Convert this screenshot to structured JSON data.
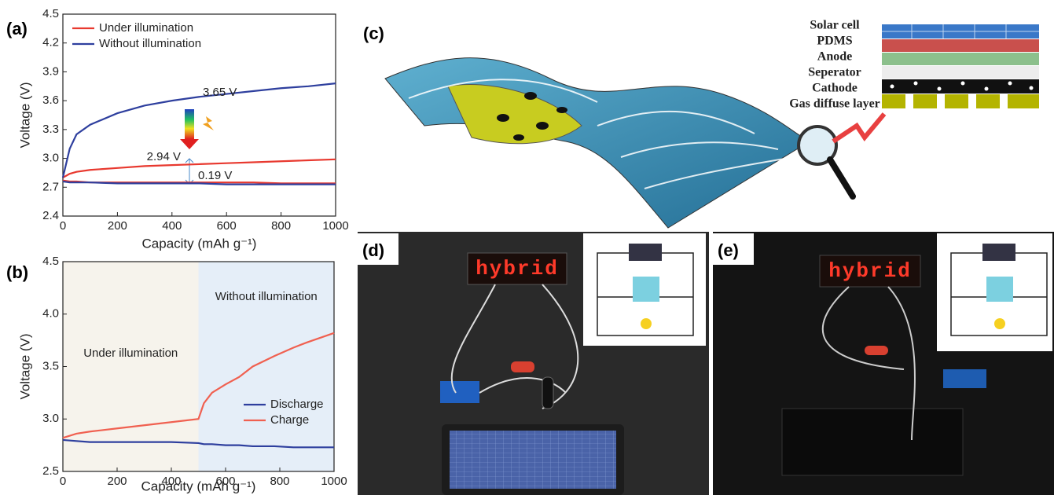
{
  "chart_data": [
    {
      "type": "line",
      "label": "(a)",
      "xlabel": "Capacity (mAh g⁻¹)",
      "ylabel": "Voltage (V)",
      "x": [
        0,
        25,
        50,
        100,
        200,
        300,
        400,
        500,
        600,
        700,
        800,
        900,
        1000
      ],
      "series": [
        {
          "name": "Under illumination",
          "color": "#e8392f",
          "values": [
            2.8,
            2.84,
            2.86,
            2.88,
            2.9,
            2.92,
            2.93,
            2.94,
            2.95,
            2.96,
            2.97,
            2.98,
            2.99
          ],
          "discharge_values": [
            2.77,
            2.76,
            2.76,
            2.75,
            2.75,
            2.75,
            2.75,
            2.75,
            2.75,
            2.75,
            2.74,
            2.74,
            2.74
          ]
        },
        {
          "name": "Without illumination",
          "color": "#2e3f9e",
          "values": [
            2.8,
            3.1,
            3.25,
            3.35,
            3.47,
            3.55,
            3.6,
            3.64,
            3.67,
            3.7,
            3.73,
            3.75,
            3.78
          ],
          "discharge_values": [
            2.76,
            2.75,
            2.75,
            2.75,
            2.74,
            2.74,
            2.74,
            2.74,
            2.73,
            2.73,
            2.73,
            2.73,
            2.73
          ]
        }
      ],
      "annotations": [
        "3.65 V",
        "2.94 V",
        "0.19 V"
      ],
      "xlim": [
        0,
        1000
      ],
      "xticks": [
        0,
        200,
        400,
        600,
        800,
        1000
      ],
      "ylim": [
        2.4,
        4.5
      ],
      "yticks": [
        2.4,
        2.7,
        {
          "value": 3,
          "label": "3.0"
        },
        3.3,
        3.6,
        3.9,
        4.2,
        4.5
      ],
      "legend": "upper left"
    },
    {
      "type": "line",
      "label": "(b)",
      "xlabel": "Capacity (mAh g⁻¹)",
      "ylabel": "Voltage (V)",
      "x": [
        0,
        50,
        100,
        200,
        300,
        400,
        500,
        520,
        550,
        600,
        650,
        700,
        780,
        850,
        900,
        1000
      ],
      "series": [
        {
          "name": "Discharge",
          "color": "#2e3f9e",
          "values": [
            2.8,
            2.79,
            2.78,
            2.78,
            2.78,
            2.78,
            2.77,
            2.76,
            2.76,
            2.75,
            2.75,
            2.74,
            2.74,
            2.73,
            2.73,
            2.73
          ]
        },
        {
          "name": "Charge",
          "color": "#f06050",
          "values": [
            2.82,
            2.86,
            2.88,
            2.91,
            2.94,
            2.97,
            3.0,
            3.15,
            3.25,
            3.33,
            3.4,
            3.5,
            3.6,
            3.68,
            3.73,
            3.82
          ]
        }
      ],
      "regions": [
        {
          "label": "Under illumination",
          "xlim": [
            0,
            500
          ],
          "color": "#f6f3ec"
        },
        {
          "label": "Without illumination",
          "xlim": [
            500,
            1000
          ],
          "color": "#e5eef8"
        }
      ],
      "region_label_color": "#f0b400",
      "xlim": [
        0,
        1000
      ],
      "xticks": [
        0,
        200,
        400,
        600,
        800,
        1000
      ],
      "ylim": [
        2.5,
        4.5
      ],
      "yticks": [
        2.5,
        {
          "value": 3,
          "label": "3.0"
        },
        3.5,
        {
          "value": 4,
          "label": "4.0"
        },
        4.5
      ],
      "legend": "lower right"
    }
  ],
  "panel_c": {
    "label": "(c)",
    "layers": [
      {
        "name": "Solar cell",
        "color": "#2f8fa6"
      },
      {
        "name": "PDMS",
        "color": "#c0504d"
      },
      {
        "name": "Anode",
        "color": "#c0504d"
      },
      {
        "name": "Seperator",
        "color": "#d8826e"
      },
      {
        "name": "Cathode",
        "color": "#000000"
      },
      {
        "name": "Gas diffuse layer",
        "color": "#a4a400"
      }
    ]
  },
  "photos": [
    {
      "label": "(d)",
      "display": "hybrid"
    },
    {
      "label": "(e)",
      "display": "hybrid"
    }
  ]
}
